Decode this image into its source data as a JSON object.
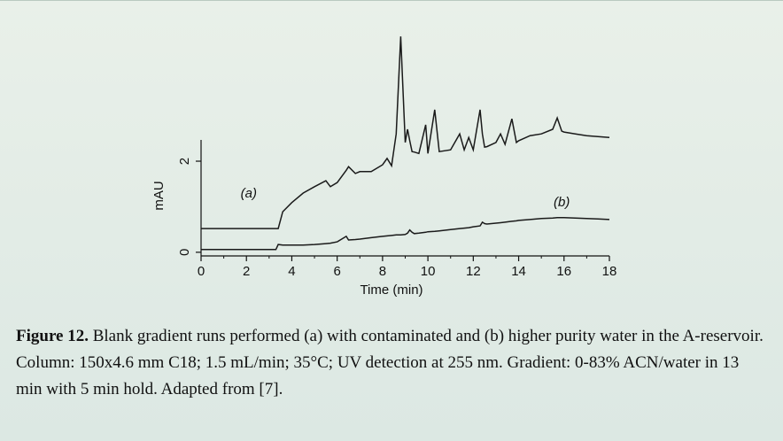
{
  "chart_data": {
    "type": "line",
    "x": [
      0,
      3.3,
      3.4,
      3.6,
      4,
      4.5,
      5,
      5.5,
      5.7,
      6,
      6.4,
      6.5,
      6.8,
      7,
      7.5,
      8,
      8.2,
      8.4,
      8.6,
      8.8,
      9,
      9.1,
      9.2,
      9.3,
      9.4,
      9.6,
      9.9,
      10,
      10.3,
      10.5,
      11,
      11.4,
      11.6,
      11.8,
      12,
      12.3,
      12.4,
      12.5,
      12.6,
      13,
      13.2,
      13.4,
      13.7,
      13.9,
      14,
      14.5,
      15,
      15.5,
      15.7,
      15.9,
      16,
      16.5,
      17,
      17.5,
      18
    ],
    "series": [
      {
        "name": "(a)",
        "color": "#1a1a1a",
        "values": [
          0.52,
          0.52,
          0.52,
          0.89,
          1.09,
          1.3,
          1.44,
          1.57,
          1.44,
          1.53,
          1.8,
          1.88,
          1.73,
          1.77,
          1.77,
          1.92,
          2.06,
          1.9,
          2.6,
          4.74,
          2.41,
          2.7,
          2.45,
          2.21,
          2.2,
          2.17,
          2.8,
          2.17,
          3.13,
          2.21,
          2.25,
          2.6,
          2.25,
          2.52,
          2.25,
          3.13,
          2.6,
          2.31,
          2.32,
          2.41,
          2.6,
          2.37,
          2.93,
          2.41,
          2.45,
          2.56,
          2.6,
          2.7,
          2.95,
          2.66,
          2.64,
          2.6,
          2.56,
          2.54,
          2.52
        ]
      },
      {
        "name": "(b)",
        "color": "#1a1a1a",
        "values": [
          0.06,
          0.06,
          0.17,
          0.16,
          0.16,
          0.16,
          0.17,
          0.19,
          0.2,
          0.23,
          0.35,
          0.27,
          0.28,
          0.29,
          0.32,
          0.35,
          0.36,
          0.37,
          0.38,
          0.38,
          0.39,
          0.42,
          0.49,
          0.44,
          0.41,
          0.42,
          0.44,
          0.45,
          0.46,
          0.47,
          0.5,
          0.52,
          0.53,
          0.54,
          0.56,
          0.58,
          0.66,
          0.63,
          0.62,
          0.64,
          0.65,
          0.66,
          0.68,
          0.69,
          0.7,
          0.72,
          0.74,
          0.75,
          0.76,
          0.76,
          0.76,
          0.75,
          0.74,
          0.73,
          0.72
        ]
      }
    ],
    "x_label": "Time (min)",
    "y_label": "mAU",
    "xlim": [
      0,
      18
    ],
    "xticks": [
      0,
      2,
      4,
      6,
      8,
      10,
      12,
      14,
      16,
      18
    ],
    "xminorticks": [
      1,
      3,
      5,
      7,
      9,
      11,
      13,
      15,
      17
    ],
    "ylim": [
      -0.08,
      4.8
    ],
    "yticks": [
      0,
      2
    ]
  },
  "caption": {
    "label": "Figure 12.",
    "text": "Blank gradient runs performed (a) with contaminated and (b) higher purity water in the A-reservoir. Column: 150x4.6 mm C18; 1.5 mL/min; 35°C; UV detection at 255 nm. Gradient: 0-83% ACN/water in 13 min with 5 min hold. Adapted from [7]."
  }
}
